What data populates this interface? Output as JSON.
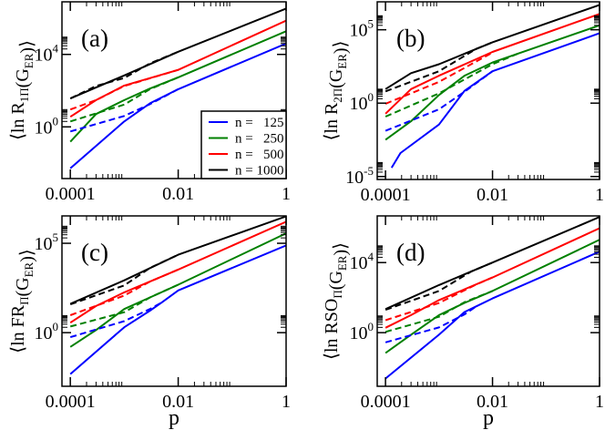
{
  "chart_data": [
    {
      "type": "line",
      "panel_label": "(a)",
      "ylabel_parts": [
        {
          "t": "⟨ln R"
        },
        {
          "sub": "1Π"
        },
        {
          "t": "(G"
        },
        {
          "sub": "ER"
        },
        {
          "t": ")⟩"
        }
      ],
      "xlabel": "",
      "xscale": "log",
      "yscale": "log",
      "xlim": [
        7e-05,
        1
      ],
      "ylim": [
        0.0014,
        8000000.0
      ],
      "xticks": [
        {
          "v": 0.0001,
          "label": "0.0001"
        },
        {
          "v": 0.01,
          "label": "0.01"
        },
        {
          "v": 1,
          "label": "1"
        }
      ],
      "yticks": [
        {
          "v": 1,
          "label": "10^0"
        },
        {
          "v": 10000,
          "label": "10^4"
        }
      ],
      "legend": {
        "placement": "bottom-right",
        "entries": [
          {
            "label": "n =   125",
            "color": "#0000ff"
          },
          {
            "label": "n =   250",
            "color": "#008000"
          },
          {
            "label": "n =   500",
            "color": "#ff0000"
          },
          {
            "label": "n = 1000",
            "color": "#000000"
          }
        ]
      },
      "series": [
        {
          "n": 1000,
          "style": "solid",
          "color": "#000000",
          "points": [
            [
              0.0001,
              37
            ],
            [
              0.001,
              690
            ],
            [
              0.01,
              14000
            ],
            [
              1,
              3400000.0
            ]
          ]
        },
        {
          "n": 1000,
          "style": "dashed",
          "color": "#000000",
          "points": [
            [
              0.0001,
              37
            ],
            [
              0.0003,
              180
            ],
            [
              0.001,
              500
            ],
            [
              0.003,
              3200
            ],
            [
              0.01,
              14000
            ]
          ]
        },
        {
          "n": 500,
          "style": "solid",
          "color": "#ff0000",
          "points": [
            [
              0.0001,
              3.6
            ],
            [
              0.0003,
              30
            ],
            [
              0.001,
              190
            ],
            [
              0.01,
              1400
            ],
            [
              1,
              740000.0
            ]
          ]
        },
        {
          "n": 500,
          "style": "dashed",
          "color": "#ff0000",
          "points": [
            [
              0.0001,
              9.1
            ],
            [
              0.0003,
              30
            ],
            [
              0.001,
              180
            ],
            [
              0.01,
              1400
            ]
          ]
        },
        {
          "n": 250,
          "style": "solid",
          "color": "#008000",
          "points": [
            [
              0.0001,
              0.15
            ],
            [
              0.0003,
              5.1
            ],
            [
              0.001,
              30
            ],
            [
              0.003,
              130
            ],
            [
              0.01,
              540
            ],
            [
              1,
              190000.0
            ]
          ]
        },
        {
          "n": 250,
          "style": "dashed",
          "color": "#008000",
          "points": [
            [
              0.0001,
              2
            ],
            [
              0.001,
              17
            ],
            [
              0.003,
              120
            ],
            [
              0.01,
              540
            ]
          ]
        },
        {
          "n": 125,
          "style": "solid",
          "color": "#0000ff",
          "points": [
            [
              0.0001,
              0.0052
            ],
            [
              0.001,
              2
            ],
            [
              0.003,
              20
            ],
            [
              0.01,
              120
            ],
            [
              1,
              40000
            ]
          ]
        },
        {
          "n": 125,
          "style": "dashed",
          "color": "#0000ff",
          "points": [
            [
              0.0001,
              0.56
            ],
            [
              0.001,
              4
            ],
            [
              0.003,
              18
            ],
            [
              0.01,
              120
            ]
          ]
        }
      ]
    },
    {
      "type": "line",
      "panel_label": "(b)",
      "ylabel_parts": [
        {
          "t": "⟨ln R"
        },
        {
          "sub": "2Π"
        },
        {
          "t": "(G"
        },
        {
          "sub": "ER"
        },
        {
          "t": ")⟩"
        }
      ],
      "xlabel": "",
      "xscale": "log",
      "yscale": "log",
      "xlim": [
        7e-05,
        1
      ],
      "ylim": [
        6.3e-06,
        8000000.0
      ],
      "xticks": [
        {
          "v": 0.0001,
          "label": "0.0001"
        },
        {
          "v": 0.01,
          "label": "0.01"
        },
        {
          "v": 1,
          "label": "1"
        }
      ],
      "yticks": [
        {
          "v": 1e-05,
          "label": "10^-5"
        },
        {
          "v": 1,
          "label": "10^0"
        },
        {
          "v": 100000,
          "label": "10^5"
        }
      ],
      "series": [
        {
          "n": 1000,
          "style": "solid",
          "color": "#000000",
          "points": [
            [
              0.0001,
              9.1
            ],
            [
              0.0003,
              110
            ],
            [
              0.001,
              450
            ],
            [
              0.01,
              14000
            ],
            [
              1,
              4900000.0
            ]
          ]
        },
        {
          "n": 1000,
          "style": "dashed",
          "color": "#000000",
          "points": [
            [
              0.0001,
              6.3
            ],
            [
              0.001,
              150
            ],
            [
              0.005,
              5100
            ],
            [
              0.01,
              14000
            ]
          ]
        },
        {
          "n": 500,
          "style": "solid",
          "color": "#ff0000",
          "points": [
            [
              0.0001,
              0.19
            ],
            [
              0.0003,
              9.1
            ],
            [
              0.001,
              74
            ],
            [
              0.01,
              3100
            ],
            [
              1,
              1200000.0
            ]
          ]
        },
        {
          "n": 500,
          "style": "dashed",
          "color": "#ff0000",
          "points": [
            [
              0.0001,
              0.91
            ],
            [
              0.001,
              28
            ],
            [
              0.01,
              2800
            ]
          ]
        },
        {
          "n": 250,
          "style": "solid",
          "color": "#008000",
          "points": [
            [
              0.0001,
              0.0032
            ],
            [
              0.0003,
              0.058
            ],
            [
              0.001,
              3.6
            ],
            [
              0.003,
              74
            ],
            [
              0.01,
              590
            ],
            [
              1,
              200000.0
            ]
          ]
        },
        {
          "n": 250,
          "style": "dashed",
          "color": "#008000",
          "points": [
            [
              0.0001,
              0.12
            ],
            [
              0.001,
              4.6
            ],
            [
              0.01,
              450
            ],
            [
              0.03,
              2400
            ]
          ]
        },
        {
          "n": 125,
          "style": "solid",
          "color": "#0000ff",
          "points": [
            [
              0.00013,
              4e-05
            ],
            [
              0.00019,
              0.0004
            ],
            [
              0.001,
              0.035
            ],
            [
              0.003,
              6.9
            ],
            [
              0.01,
              150
            ],
            [
              1,
              58000
            ]
          ]
        },
        {
          "n": 125,
          "style": "dashed",
          "color": "#0000ff",
          "points": [
            [
              0.0001,
              0.013
            ],
            [
              0.001,
              0.38
            ],
            [
              0.003,
              6
            ],
            [
              0.01,
              150
            ]
          ]
        }
      ]
    },
    {
      "type": "line",
      "panel_label": "(c)",
      "ylabel_parts": [
        {
          "t": "⟨ln FR"
        },
        {
          "sub": "Π"
        },
        {
          "t": "(G"
        },
        {
          "sub": "ER"
        },
        {
          "t": ")⟩"
        }
      ],
      "xlabel": "p",
      "xscale": "log",
      "yscale": "log",
      "xlim": [
        7e-05,
        1
      ],
      "ylim": [
        0.001,
        3400000.0
      ],
      "xticks": [
        {
          "v": 0.0001,
          "label": "0.0001"
        },
        {
          "v": 0.01,
          "label": "0.01"
        },
        {
          "v": 1,
          "label": "1"
        }
      ],
      "yticks": [
        {
          "v": 1,
          "label": "10^0"
        },
        {
          "v": 100000,
          "label": "10^5"
        }
      ],
      "series": [
        {
          "n": 1000,
          "style": "solid",
          "color": "#000000",
          "points": [
            [
              0.0001,
              41
            ],
            [
              0.001,
              850
            ],
            [
              0.01,
              23000
            ],
            [
              1,
              3200000.0
            ]
          ]
        },
        {
          "n": 1000,
          "style": "dashed",
          "color": "#000000",
          "points": [
            [
              0.0001,
              38
            ],
            [
              0.001,
              440
            ],
            [
              0.003,
              4200
            ],
            [
              0.01,
              23000
            ]
          ]
        },
        {
          "n": 500,
          "style": "solid",
          "color": "#ff0000",
          "points": [
            [
              0.0001,
              3.6
            ],
            [
              0.0003,
              31
            ],
            [
              0.001,
              180
            ],
            [
              0.01,
              3400
            ],
            [
              1,
              1600000.0
            ]
          ]
        },
        {
          "n": 500,
          "style": "dashed",
          "color": "#ff0000",
          "points": [
            [
              0.0001,
              9.5
            ],
            [
              0.001,
              120
            ],
            [
              0.003,
              720
            ],
            [
              0.01,
              3400
            ]
          ]
        },
        {
          "n": 250,
          "style": "solid",
          "color": "#008000",
          "points": [
            [
              0.0001,
              0.16
            ],
            [
              0.0003,
              1.4
            ],
            [
              0.001,
              21
            ],
            [
              0.003,
              93
            ],
            [
              0.01,
              480
            ],
            [
              1,
              360000.0
            ]
          ]
        },
        {
          "n": 250,
          "style": "dashed",
          "color": "#008000",
          "points": [
            [
              0.0001,
              2.2
            ],
            [
              0.001,
              14
            ],
            [
              0.003,
              93
            ],
            [
              0.01,
              480
            ]
          ]
        },
        {
          "n": 125,
          "style": "solid",
          "color": "#0000ff",
          "points": [
            [
              0.0001,
              0.0048
            ],
            [
              0.001,
              2
            ],
            [
              0.003,
              17
            ],
            [
              0.005,
              50
            ],
            [
              0.01,
              230
            ],
            [
              1,
              76000
            ]
          ]
        },
        {
          "n": 125,
          "style": "dashed",
          "color": "#0000ff",
          "points": [
            [
              0.0001,
              0.56
            ],
            [
              0.001,
              4.4
            ],
            [
              0.003,
              21
            ],
            [
              0.005,
              50
            ]
          ]
        }
      ]
    },
    {
      "type": "line",
      "panel_label": "(d)",
      "ylabel_parts": [
        {
          "t": "⟨ln RSO"
        },
        {
          "sub": "Π"
        },
        {
          "t": "(G"
        },
        {
          "sub": "ER"
        },
        {
          "t": ")⟩"
        }
      ],
      "xlabel": "p",
      "xscale": "log",
      "yscale": "log",
      "xlim": [
        7e-05,
        1
      ],
      "ylim": [
        0.00087,
        4600000.0
      ],
      "xticks": [
        {
          "v": 0.0001,
          "label": "0.0001"
        },
        {
          "v": 0.01,
          "label": "0.01"
        },
        {
          "v": 1,
          "label": "1"
        }
      ],
      "yticks": [
        {
          "v": 1,
          "label": "10^0"
        },
        {
          "v": 10000,
          "label": "10^4"
        }
      ],
      "series": [
        {
          "n": 1000,
          "style": "solid",
          "color": "#000000",
          "points": [
            [
              0.0001,
              22
            ],
            [
              0.001,
              520
            ],
            [
              0.01,
              10000
            ],
            [
              1,
              4000000.0
            ]
          ]
        },
        {
          "n": 1000,
          "style": "dashed",
          "color": "#000000",
          "points": [
            [
              0.0001,
              20
            ],
            [
              0.001,
              240
            ],
            [
              0.004,
              3100
            ],
            [
              0.01,
              10000
            ]
          ]
        },
        {
          "n": 500,
          "style": "solid",
          "color": "#ff0000",
          "points": [
            [
              0.0001,
              1.9
            ],
            [
              0.0003,
              10
            ],
            [
              0.001,
              72
            ],
            [
              0.01,
              1400
            ],
            [
              1,
              910000.0
            ]
          ]
        },
        {
          "n": 500,
          "style": "dashed",
          "color": "#ff0000",
          "points": [
            [
              0.0001,
              5.1
            ],
            [
              0.001,
              49
            ],
            [
              0.005,
              575
            ],
            [
              0.01,
              1400
            ]
          ]
        },
        {
          "n": 250,
          "style": "solid",
          "color": "#008000",
          "points": [
            [
              0.0001,
              0.069
            ],
            [
              0.0003,
              0.76
            ],
            [
              0.001,
              10
            ],
            [
              0.003,
              50
            ],
            [
              0.01,
              240
            ],
            [
              1,
              200000.0
            ]
          ]
        },
        {
          "n": 250,
          "style": "dashed",
          "color": "#008000",
          "points": [
            [
              0.0001,
              1.1
            ],
            [
              0.001,
              8.1
            ],
            [
              0.003,
              55
            ],
            [
              0.01,
              240
            ]
          ]
        },
        {
          "n": 125,
          "style": "solid",
          "color": "#0000ff",
          "points": [
            [
              0.0001,
              0.0024
            ],
            [
              0.001,
              0.76
            ],
            [
              0.003,
              15
            ],
            [
              0.005,
              32
            ],
            [
              0.01,
              89
            ],
            [
              1,
              42000
            ]
          ]
        },
        {
          "n": 125,
          "style": "dashed",
          "color": "#0000ff",
          "points": [
            [
              0.0001,
              0.28
            ],
            [
              0.001,
              2
            ],
            [
              0.003,
              11
            ],
            [
              0.005,
              32
            ]
          ]
        }
      ]
    }
  ]
}
